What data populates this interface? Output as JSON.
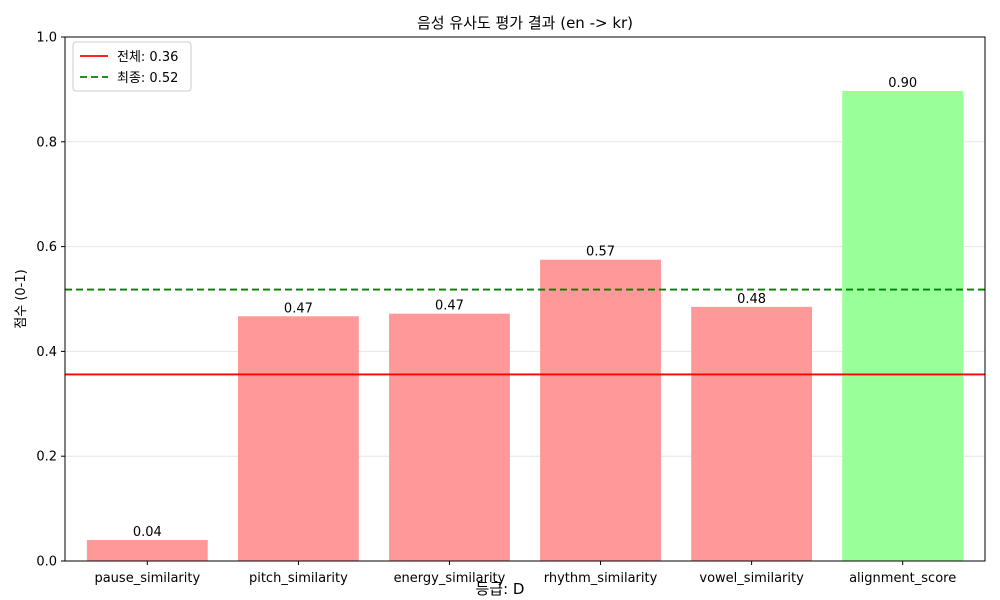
{
  "chart_data": {
    "type": "bar",
    "title": "음성 유사도 평가 결과 (en -> kr)",
    "xlabel": "등급: D",
    "ylabel": "점수 (0-1)",
    "ylim": [
      0,
      1.0
    ],
    "yticks": [
      "0.0",
      "0.2",
      "0.4",
      "0.6",
      "0.8",
      "1.0"
    ],
    "ytick_values": [
      0,
      0.2,
      0.4,
      0.6,
      0.8,
      1.0
    ],
    "grid": "horizontal",
    "categories": [
      "pause_similarity",
      "pitch_similarity",
      "energy_similarity",
      "rhythm_similarity",
      "vowel_similarity",
      "alignment_score"
    ],
    "values": [
      0.04,
      0.467,
      0.472,
      0.575,
      0.485,
      0.897
    ],
    "value_labels": [
      "0.04",
      "0.47",
      "0.47",
      "0.57",
      "0.48",
      "0.90"
    ],
    "bar_colors": [
      "#ff9999",
      "#ff9999",
      "#ff9999",
      "#ff9999",
      "#ff9999",
      "#99ff99"
    ],
    "reference_lines": [
      {
        "label": "전체: 0.36",
        "value": 0.356,
        "color": "#ff0000",
        "style": "solid"
      },
      {
        "label": "최종: 0.52",
        "value": 0.518,
        "color": "#008000",
        "style": "dashed"
      }
    ],
    "legend_position": "top-left"
  }
}
